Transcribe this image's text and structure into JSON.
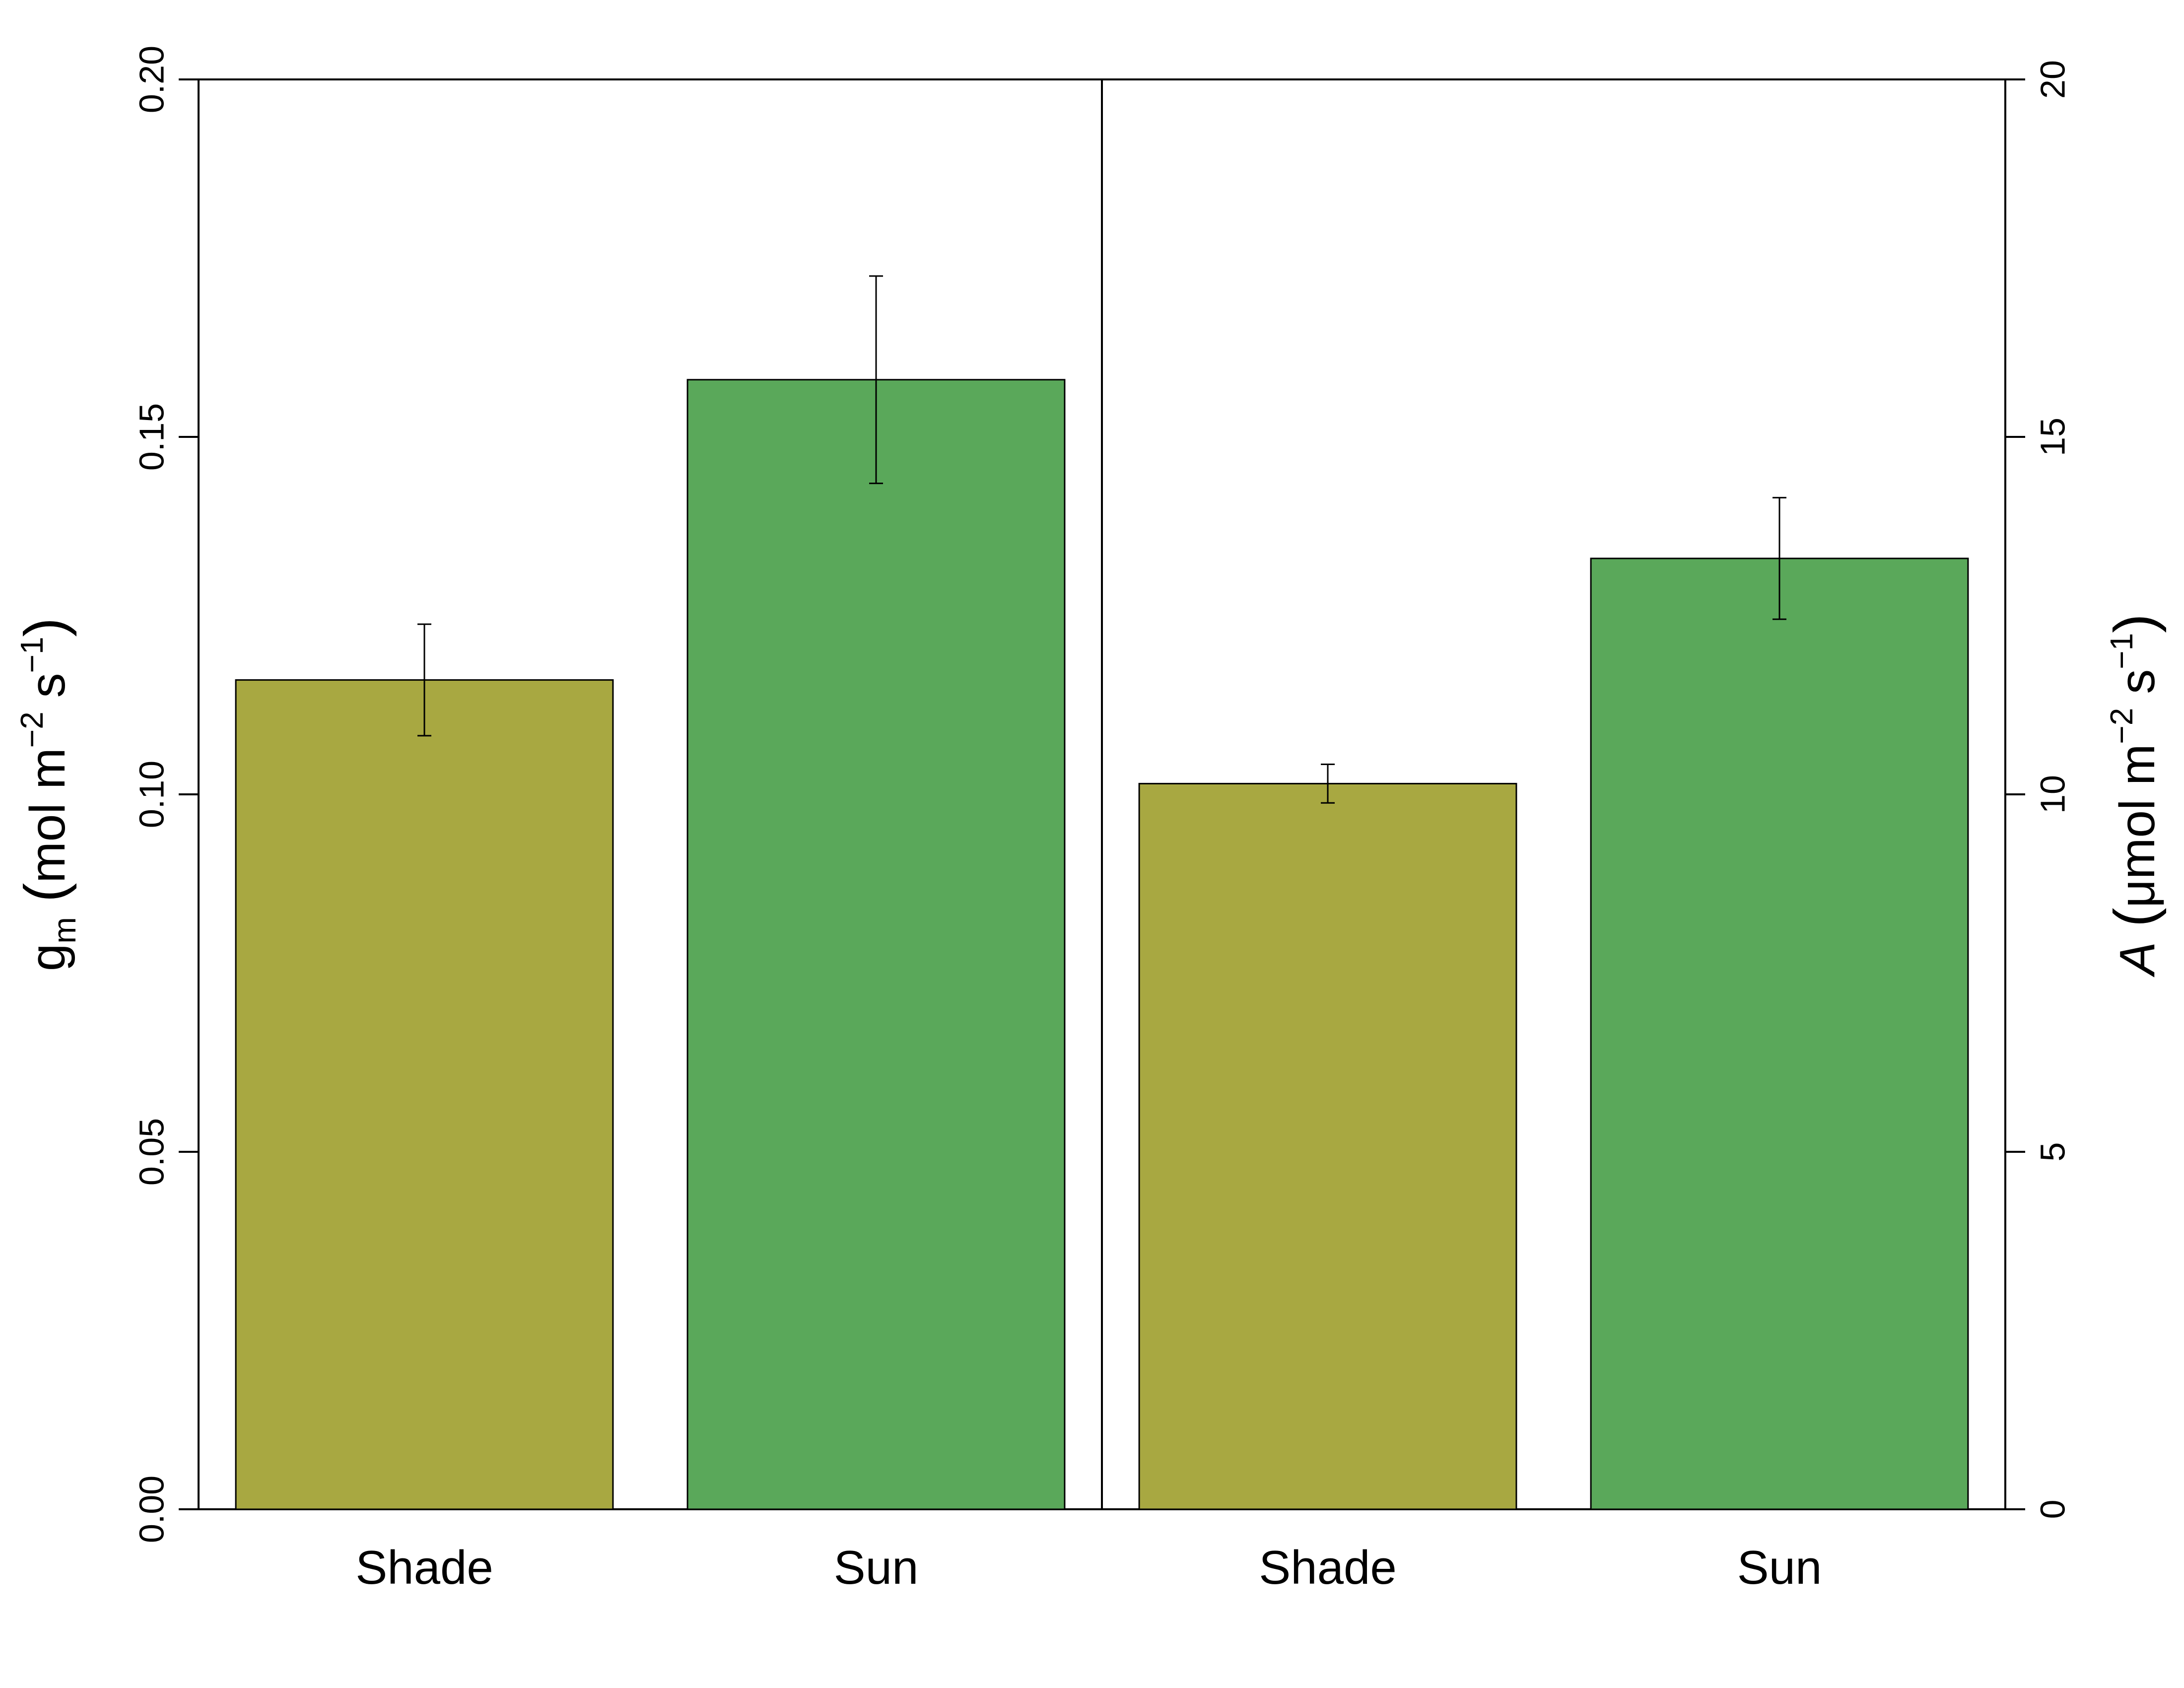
{
  "chart_data": {
    "type": "bar",
    "panels": [
      {
        "axis": "left",
        "categories": [
          "Shade",
          "Sun"
        ],
        "values": [
          0.116,
          0.158
        ],
        "errors": [
          0.0078,
          0.0145
        ],
        "ylim": [
          0,
          0.2
        ],
        "yticks": [
          "0.00",
          "0.05",
          "0.10",
          "0.15",
          "0.20"
        ],
        "colors": [
          "#a8a841",
          "#5aa85a"
        ]
      },
      {
        "axis": "right",
        "categories": [
          "Shade",
          "Sun"
        ],
        "values": [
          10.15,
          13.3
        ],
        "errors": [
          0.27,
          0.85
        ],
        "ylim": [
          0,
          20
        ],
        "yticks": [
          "0",
          "5",
          "10",
          "15",
          "20"
        ],
        "colors": [
          "#a8a841",
          "#5aa85a"
        ]
      }
    ],
    "ylabel_left": {
      "base": "g",
      "sub": "m",
      "open": "(",
      "unit_main": "mol m",
      "exp1": "−2",
      "unit_mid": " s",
      "exp2": "−1",
      "close": ")"
    },
    "ylabel_right": {
      "base": "A",
      "open": "(",
      "unit_main": "μmol m",
      "exp1": "−2",
      "unit_mid": " s",
      "exp2": "−1",
      "close": ")"
    },
    "grid": false,
    "legend": "none"
  }
}
